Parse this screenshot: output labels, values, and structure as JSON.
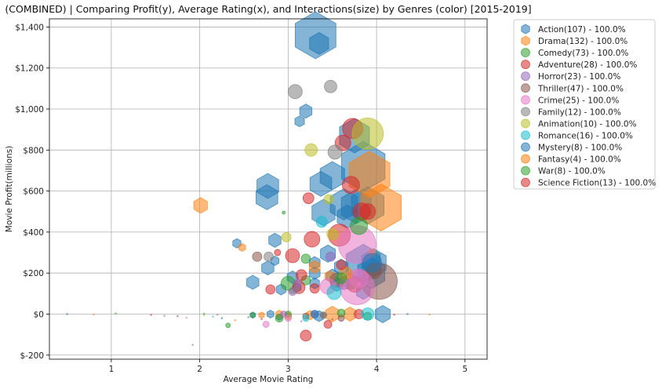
{
  "chart_data": {
    "type": "scatter",
    "title": "(COMBINED) | Comparing Profit(y), Average Rating(x), and Interactions(size) by Genres (color) [2015-2019]",
    "xlabel": "Average Movie Rating",
    "ylabel": "Movie Profit(millions)",
    "xlim": [
      0.3,
      5.25
    ],
    "ylim": [
      -220,
      1440
    ],
    "x_ticks": [
      1,
      2,
      3,
      4,
      5
    ],
    "x_tick_labels": [
      "1",
      "2",
      "3",
      "4",
      "5"
    ],
    "y_ticks": [
      -200,
      0,
      200,
      400,
      600,
      800,
      1000,
      1200,
      1400
    ],
    "y_tick_labels": [
      "$-200",
      "$0",
      "$200",
      "$400",
      "$600",
      "$800",
      "$1,000",
      "$1,200",
      "$1,400"
    ],
    "grid": true,
    "legend_position": "outside-right",
    "series": [
      {
        "name": "Action(107) - 100.0%",
        "color": "#1f77b4",
        "marker": "hexagon",
        "points": [
          [
            3.31,
            1360,
            30
          ],
          [
            3.35,
            1320,
            14
          ],
          [
            3.2,
            990,
            9
          ],
          [
            3.13,
            940,
            7
          ],
          [
            3.5,
            675,
            18
          ],
          [
            3.63,
            535,
            20
          ],
          [
            3.77,
            525,
            22
          ],
          [
            3.9,
            530,
            24
          ],
          [
            3.85,
            720,
            32
          ],
          [
            3.75,
            870,
            22
          ],
          [
            2.77,
            625,
            16
          ],
          [
            2.76,
            570,
            16
          ],
          [
            3.37,
            635,
            16
          ],
          [
            3.4,
            495,
            17
          ],
          [
            3.67,
            475,
            15
          ],
          [
            3.45,
            295,
            11
          ],
          [
            3.6,
            230,
            10
          ],
          [
            2.6,
            155,
            9
          ],
          [
            2.42,
            345,
            6
          ],
          [
            2.85,
            360,
            9
          ],
          [
            2.85,
            260,
            6
          ],
          [
            2.77,
            225,
            9
          ],
          [
            3.3,
            200,
            8
          ],
          [
            3.5,
            185,
            9
          ],
          [
            3.3,
            250,
            8
          ],
          [
            3.85,
            245,
            25
          ],
          [
            3.94,
            200,
            20
          ],
          [
            3.97,
            250,
            18
          ],
          [
            2.92,
            120,
            7
          ],
          [
            3.05,
            180,
            8
          ],
          [
            3.1,
            130,
            6
          ],
          [
            3.3,
            150,
            7
          ],
          [
            3.55,
            145,
            9
          ],
          [
            3.85,
            110,
            10
          ],
          [
            4.07,
            0,
            11
          ],
          [
            3.35,
            -10,
            7
          ],
          [
            2.6,
            -5,
            4
          ],
          [
            2.8,
            0,
            5
          ],
          [
            2.9,
            -15,
            4
          ]
        ]
      },
      {
        "name": "Drama(132) - 100.0%",
        "color": "#ff7f0e",
        "marker": "hexagon",
        "points": [
          [
            2.01,
            530,
            10
          ],
          [
            3.92,
            680,
            30
          ],
          [
            4.05,
            520,
            30
          ],
          [
            2.48,
            325,
            5
          ],
          [
            3.95,
            300,
            5
          ],
          [
            3.3,
            230,
            8
          ],
          [
            3.47,
            185,
            7
          ],
          [
            3.7,
            0,
            9
          ],
          [
            3.5,
            0,
            10
          ],
          [
            3.25,
            -5,
            6
          ],
          [
            2.9,
            0,
            5
          ],
          [
            3.0,
            -10,
            5
          ],
          [
            2.7,
            -5,
            4
          ]
        ]
      },
      {
        "name": "Comedy(73) - 100.0%",
        "color": "#2ca02c",
        "marker": "circle",
        "points": [
          [
            3.2,
            270,
            6
          ],
          [
            3.0,
            150,
            9
          ],
          [
            3.2,
            165,
            6
          ],
          [
            3.7,
            160,
            10
          ],
          [
            2.95,
            495,
            2
          ],
          [
            2.32,
            -55,
            3
          ],
          [
            2.6,
            -5,
            3
          ],
          [
            2.9,
            -20,
            5
          ],
          [
            3.0,
            0,
            4
          ],
          [
            3.6,
            5,
            5
          ],
          [
            3.9,
            -10,
            5
          ]
        ]
      },
      {
        "name": "Adventure(28) - 100.0%",
        "color": "#d62728",
        "marker": "circle",
        "points": [
          [
            3.73,
            905,
            13
          ],
          [
            3.62,
            835,
            10
          ],
          [
            3.83,
            500,
            11
          ],
          [
            3.71,
            630,
            11
          ],
          [
            3.23,
            565,
            7
          ],
          [
            3.58,
            385,
            14
          ],
          [
            3.27,
            365,
            10
          ],
          [
            3.05,
            285,
            9
          ],
          [
            2.88,
            300,
            4
          ],
          [
            3.15,
            190,
            7
          ],
          [
            3.12,
            130,
            8
          ],
          [
            3.3,
            125,
            6
          ],
          [
            3.75,
            145,
            10
          ],
          [
            2.8,
            120,
            6
          ],
          [
            3.2,
            -105,
            7
          ],
          [
            3.45,
            -50,
            5
          ],
          [
            3.8,
            0,
            6
          ]
        ]
      },
      {
        "name": "Horror(23) - 100.0%",
        "color": "#9467bd",
        "marker": "circle",
        "points": [
          [
            3.48,
            280,
            6
          ],
          [
            3.63,
            150,
            8
          ],
          [
            3.05,
            110,
            5
          ],
          [
            3.1,
            150,
            5
          ],
          [
            2.95,
            0,
            4
          ],
          [
            3.3,
            0,
            4
          ]
        ]
      },
      {
        "name": "Thriller(47) - 100.0%",
        "color": "#8c564b",
        "marker": "circle",
        "points": [
          [
            4.03,
            160,
            23
          ],
          [
            3.97,
            210,
            10
          ],
          [
            2.65,
            280,
            6
          ],
          [
            3.55,
            165,
            9
          ],
          [
            3.2,
            -10,
            4
          ],
          [
            3.4,
            -5,
            4
          ],
          [
            3.6,
            -20,
            4
          ]
        ]
      },
      {
        "name": "Crime(25) - 100.0%",
        "color": "#e377c2",
        "marker": "circle",
        "points": [
          [
            3.78,
            340,
            24
          ],
          [
            3.78,
            130,
            22
          ],
          [
            3.8,
            175,
            12
          ],
          [
            3.45,
            135,
            10
          ],
          [
            2.75,
            -50,
            4
          ],
          [
            3.0,
            -20,
            4
          ]
        ]
      },
      {
        "name": "Family(12) - 100.0%",
        "color": "#7f7f7f",
        "marker": "circle",
        "points": [
          [
            3.08,
            1085,
            9
          ],
          [
            3.48,
            1110,
            8
          ],
          [
            3.53,
            790,
            9
          ],
          [
            2.78,
            280,
            6
          ],
          [
            3.05,
            115,
            4
          ],
          [
            3.4,
            -5,
            4
          ]
        ]
      },
      {
        "name": "Animation(10) - 100.0%",
        "color": "#bcbd22",
        "marker": "circle",
        "points": [
          [
            3.9,
            880,
            20
          ],
          [
            3.26,
            800,
            8
          ],
          [
            3.46,
            560,
            6
          ],
          [
            2.98,
            375,
            6
          ],
          [
            3.5,
            390,
            7
          ]
        ]
      },
      {
        "name": "Romance(16) - 100.0%",
        "color": "#17becf",
        "marker": "circle",
        "points": [
          [
            3.38,
            450,
            7
          ],
          [
            3.52,
            105,
            9
          ],
          [
            3.9,
            0,
            8
          ],
          [
            3.2,
            -20,
            4
          ]
        ]
      },
      {
        "name": "Mystery(8) - 100.0%",
        "color": "#1f77b4",
        "marker": "circle",
        "points": [
          [
            3.95,
            250,
            12
          ],
          [
            3.3,
            0,
            5
          ]
        ]
      },
      {
        "name": "Fantasy(4) - 100.0%",
        "color": "#ff7f0e",
        "marker": "circle",
        "points": [
          [
            3.65,
            200,
            8
          ]
        ]
      },
      {
        "name": "War(8) - 100.0%",
        "color": "#2ca02c",
        "marker": "circle",
        "points": [
          [
            3.8,
            430,
            11
          ],
          [
            3.6,
            175,
            7
          ]
        ]
      },
      {
        "name": "Science Fiction(13) - 100.0%",
        "color": "#d62728",
        "marker": "circle",
        "points": [
          [
            3.6,
            240,
            6
          ],
          [
            3.9,
            500,
            10
          ]
        ]
      }
    ]
  }
}
